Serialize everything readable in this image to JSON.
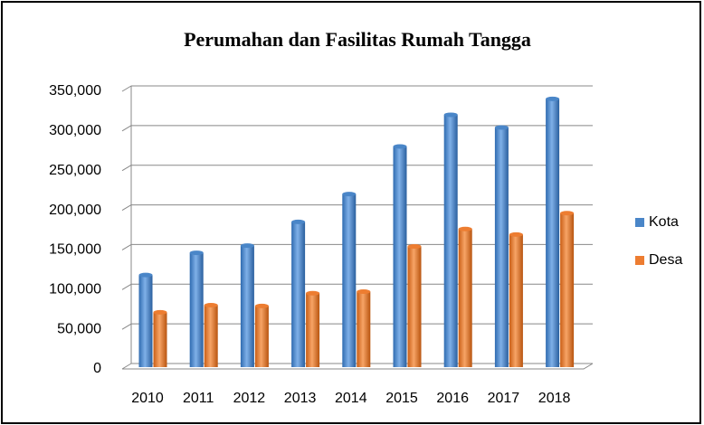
{
  "chart_data": {
    "type": "bar",
    "title": "Perumahan dan Fasilitas Rumah Tangga",
    "categories": [
      "2010",
      "2011",
      "2012",
      "2013",
      "2014",
      "2015",
      "2016",
      "2017",
      "2018"
    ],
    "series": [
      {
        "name": "Kota",
        "color": "#4a86c8",
        "values": [
          115000,
          143000,
          152000,
          182000,
          217000,
          277000,
          317000,
          301000,
          337000
        ]
      },
      {
        "name": "Desa",
        "color": "#ed7d31",
        "values": [
          68000,
          77000,
          76000,
          92000,
          94000,
          151000,
          173000,
          166000,
          193000
        ]
      }
    ],
    "ylim": [
      0,
      350000
    ],
    "yticks": [
      0,
      {
        "value": 50000,
        "label": "50,000"
      },
      {
        "value": 100000,
        "label": "100,000"
      },
      {
        "value": 150000,
        "label": "150,000"
      },
      {
        "value": 200000,
        "label": "200,000"
      },
      {
        "value": 250000,
        "label": "250,000"
      },
      {
        "value": 300000,
        "label": "300,000"
      },
      {
        "value": 350000,
        "label": "350,000"
      }
    ],
    "grid": true,
    "legend": "right"
  }
}
